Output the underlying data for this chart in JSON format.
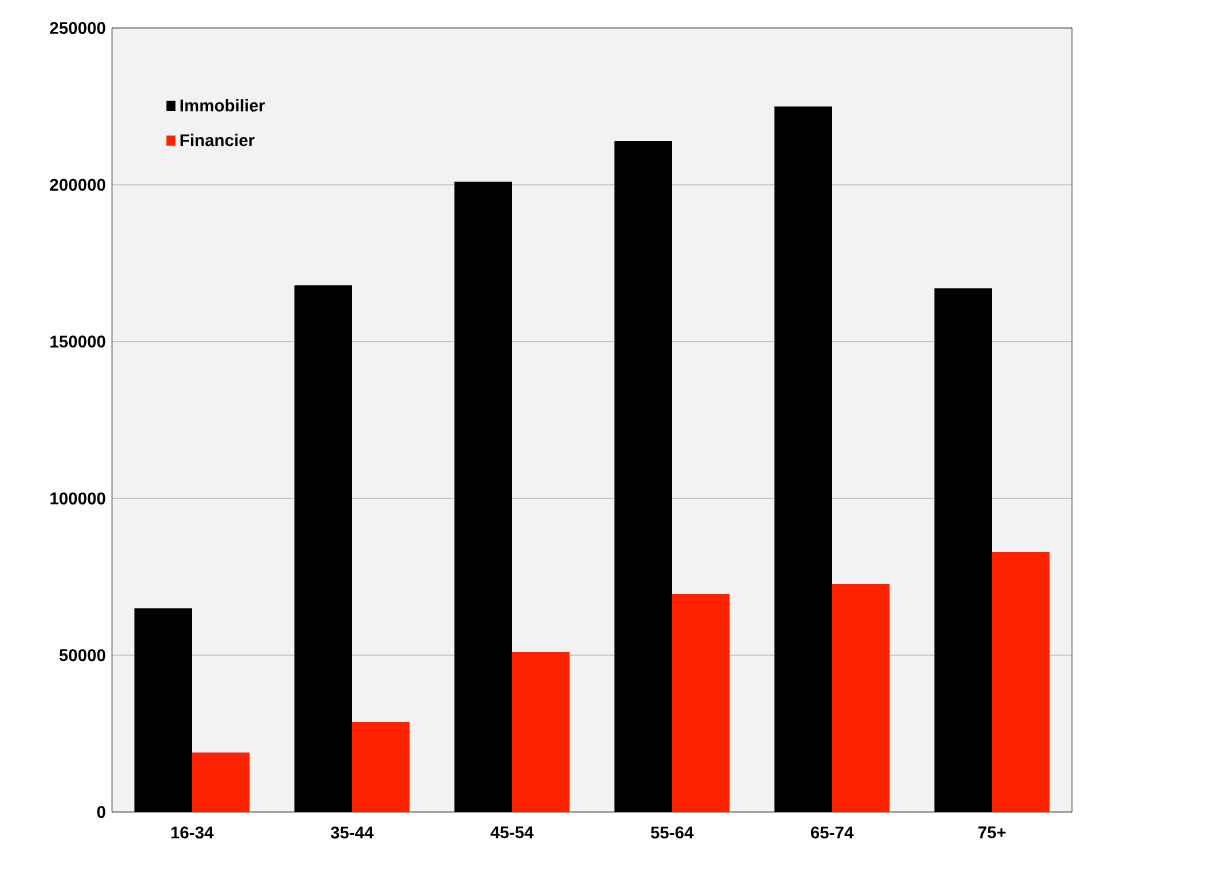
{
  "chart_data": {
    "type": "bar",
    "categories": [
      "16-34",
      "35-44",
      "45-54",
      "55-64",
      "65-74",
      "75+"
    ],
    "series": [
      {
        "name": "Immobilier",
        "color": "#000000",
        "values": [
          65000,
          168000,
          201000,
          214000,
          225000,
          167000
        ]
      },
      {
        "name": "Financier",
        "color": "#ff2200",
        "values": [
          19000,
          28700,
          51000,
          69500,
          72700,
          82900
        ]
      }
    ],
    "ylim": [
      0,
      250000
    ],
    "yticks": [
      0,
      50000,
      100000,
      150000,
      200000,
      250000
    ],
    "grid": "y",
    "legend": "top left"
  }
}
